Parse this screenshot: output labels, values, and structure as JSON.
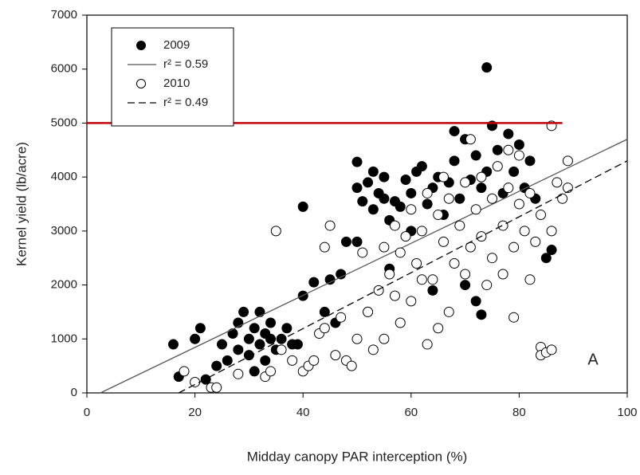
{
  "chart_data": {
    "type": "scatter",
    "x_label": "Midday canopy PAR interception (%)",
    "y_label": "Kernel yield (lb/acre)",
    "xlim": [
      0,
      100
    ],
    "xticks": [
      0,
      20,
      40,
      60,
      80,
      100
    ],
    "ylim": [
      0,
      7000
    ],
    "yticks": [
      0,
      1000,
      2000,
      3000,
      4000,
      5000,
      6000,
      7000
    ],
    "grid": false,
    "legend": "upper left",
    "annotation": "A",
    "reference_line": {
      "y": 5000,
      "x": [
        0,
        88
      ],
      "color": "#c00000"
    },
    "series": [
      {
        "name": "2009",
        "marker": "filled",
        "color": "#000000",
        "x": [
          16,
          17,
          20,
          21,
          22,
          24,
          25,
          26,
          27,
          28,
          28,
          29,
          30,
          30,
          31,
          32,
          32,
          33,
          33,
          34,
          35,
          36,
          37,
          38,
          40,
          40,
          42,
          44,
          45,
          47,
          48,
          50,
          50,
          50,
          51,
          52,
          53,
          53,
          54,
          55,
          55,
          56,
          57,
          58,
          59,
          60,
          61,
          62,
          63,
          64,
          65,
          66,
          67,
          68,
          68,
          69,
          70,
          71,
          72,
          73,
          73,
          74,
          74,
          75,
          76,
          77,
          78,
          79,
          80,
          81,
          82,
          83,
          85,
          86,
          64,
          70,
          72,
          60,
          56,
          52,
          46,
          34,
          31,
          39
        ],
        "values": [
          900,
          300,
          1000,
          1200,
          250,
          500,
          900,
          600,
          1100,
          1300,
          800,
          1500,
          700,
          1000,
          1200,
          1500,
          900,
          600,
          1100,
          1300,
          800,
          1000,
          1200,
          900,
          1800,
          3450,
          2050,
          1500,
          2100,
          2200,
          2800,
          2800,
          3800,
          4280,
          3550,
          3900,
          3400,
          4100,
          3700,
          3600,
          4000,
          3200,
          3550,
          3450,
          3950,
          3700,
          4100,
          4200,
          3500,
          3800,
          4000,
          3300,
          3900,
          4300,
          4850,
          3600,
          4700,
          3950,
          4400,
          1450,
          3800,
          4100,
          6030,
          4950,
          4500,
          3700,
          4800,
          4100,
          4600,
          3800,
          4300,
          3600,
          2500,
          2650,
          1900,
          2000,
          1700,
          3000,
          2300,
          1500,
          1300,
          1000,
          400,
          900
        ]
      },
      {
        "name": "r² = 0.59",
        "style": "solid",
        "color": "#555555",
        "x": [
          2.5,
          100
        ],
        "values": [
          0,
          4700
        ]
      },
      {
        "name": "2010",
        "marker": "open",
        "color": "#000000",
        "x": [
          18,
          20,
          23,
          24,
          28,
          33,
          34,
          35,
          36,
          38,
          40,
          41,
          42,
          43,
          44,
          44,
          45,
          46,
          47,
          48,
          49,
          50,
          51,
          52,
          53,
          54,
          55,
          55,
          56,
          57,
          58,
          58,
          59,
          60,
          60,
          61,
          62,
          63,
          63,
          64,
          65,
          65,
          66,
          67,
          67,
          68,
          69,
          70,
          70,
          71,
          71,
          72,
          73,
          73,
          74,
          75,
          75,
          76,
          77,
          77,
          78,
          79,
          79,
          80,
          80,
          81,
          82,
          82,
          83,
          84,
          84,
          84,
          85,
          86,
          86,
          87,
          88,
          89,
          89,
          86,
          78,
          66,
          62,
          57
        ],
        "values": [
          400,
          200,
          100,
          100,
          350,
          300,
          400,
          3000,
          800,
          600,
          400,
          500,
          600,
          1100,
          2700,
          1200,
          3100,
          700,
          1400,
          600,
          500,
          1000,
          2600,
          1500,
          800,
          1900,
          2700,
          1000,
          2200,
          3100,
          1300,
          2600,
          2900,
          3400,
          1700,
          2400,
          3000,
          900,
          3700,
          2100,
          1200,
          3300,
          2800,
          1500,
          3600,
          2400,
          3100,
          3900,
          2200,
          4700,
          2700,
          3400,
          2900,
          4000,
          2000,
          3600,
          2500,
          4200,
          3100,
          2200,
          3800,
          1400,
          2700,
          3500,
          4400,
          3000,
          2100,
          3700,
          2800,
          3300,
          850,
          700,
          750,
          800,
          4950,
          3900,
          3600,
          4300,
          3800,
          3000,
          4500,
          4000,
          2100,
          1800
        ]
      },
      {
        "name": "r² = 0.49",
        "style": "dashed",
        "color": "#000000",
        "x": [
          17,
          100
        ],
        "values": [
          0,
          4300
        ]
      }
    ]
  }
}
